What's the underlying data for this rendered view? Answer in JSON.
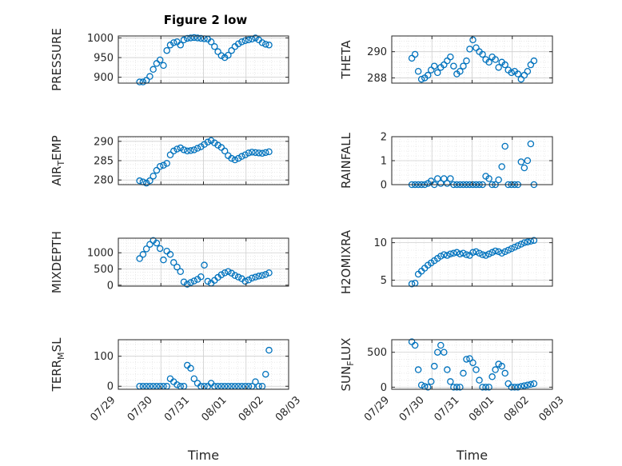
{
  "figure": {
    "title": "Figure 2 low"
  },
  "style": {
    "marker_color": "#0072BD",
    "axis_color": "#262626",
    "grid_color": "#dcdcdc",
    "background": "#ffffff"
  },
  "chart_data": [
    {
      "type": "scatter",
      "ylabel": "PRESSURE",
      "ylabel_sub": "",
      "ylabel_tail": "",
      "ylim": [
        885,
        1005
      ],
      "yticks": [
        900,
        950,
        1000
      ],
      "xlim": [
        0,
        4
      ],
      "show_x_ticks": false,
      "grid": true,
      "x": [
        0.5,
        0.58,
        0.66,
        0.74,
        0.82,
        0.9,
        0.98,
        1.06,
        1.14,
        1.22,
        1.3,
        1.38,
        1.46,
        1.54,
        1.62,
        1.7,
        1.78,
        1.86,
        1.94,
        2.02,
        2.1,
        2.18,
        2.26,
        2.34,
        2.42,
        2.5,
        2.58,
        2.66,
        2.74,
        2.82,
        2.9,
        2.98,
        3.06,
        3.14,
        3.22,
        3.3,
        3.38,
        3.46,
        3.54
      ],
      "y": [
        888,
        888,
        892,
        902,
        920,
        935,
        944,
        930,
        968,
        982,
        988,
        990,
        982,
        995,
        999,
        1000,
        1001,
        1000,
        999,
        998,
        997,
        990,
        978,
        965,
        955,
        950,
        956,
        968,
        978,
        985,
        990,
        993,
        995,
        997,
        1000,
        995,
        988,
        984,
        982
      ]
    },
    {
      "type": "scatter",
      "ylabel": "THETA",
      "ylabel_sub": "",
      "ylabel_tail": "",
      "ylim": [
        287.6,
        291.2
      ],
      "yticks": [
        288,
        290
      ],
      "xlim": [
        0,
        4
      ],
      "show_x_ticks": false,
      "grid": true,
      "x": [
        0.5,
        0.58,
        0.66,
        0.74,
        0.82,
        0.9,
        0.98,
        1.06,
        1.14,
        1.22,
        1.3,
        1.38,
        1.46,
        1.54,
        1.62,
        1.7,
        1.78,
        1.86,
        1.94,
        2.02,
        2.1,
        2.18,
        2.26,
        2.34,
        2.42,
        2.5,
        2.58,
        2.66,
        2.74,
        2.82,
        2.9,
        2.98,
        3.06,
        3.14,
        3.22,
        3.3,
        3.38,
        3.46,
        3.54
      ],
      "y": [
        289.5,
        289.8,
        288.5,
        287.9,
        288.0,
        288.2,
        288.6,
        288.9,
        288.4,
        288.8,
        289.0,
        289.3,
        289.6,
        288.9,
        288.3,
        288.5,
        288.9,
        289.3,
        290.2,
        290.9,
        290.3,
        290.0,
        289.8,
        289.4,
        289.2,
        289.6,
        289.4,
        288.8,
        289.2,
        289.0,
        288.6,
        288.4,
        288.5,
        288.3,
        287.9,
        288.2,
        288.5,
        289.0,
        289.3
      ]
    },
    {
      "type": "scatter",
      "ylabel": "AIR",
      "ylabel_sub": "T",
      "ylabel_tail": "EMP",
      "ylim": [
        278.8,
        291.2
      ],
      "yticks": [
        280,
        285,
        290
      ],
      "xlim": [
        0,
        4
      ],
      "show_x_ticks": false,
      "grid": true,
      "x": [
        0.5,
        0.58,
        0.66,
        0.74,
        0.82,
        0.9,
        0.98,
        1.06,
        1.14,
        1.22,
        1.3,
        1.38,
        1.46,
        1.54,
        1.62,
        1.7,
        1.78,
        1.86,
        1.94,
        2.02,
        2.1,
        2.18,
        2.26,
        2.34,
        2.42,
        2.5,
        2.58,
        2.66,
        2.74,
        2.82,
        2.9,
        2.98,
        3.06,
        3.14,
        3.22,
        3.3,
        3.38,
        3.46,
        3.54
      ],
      "y": [
        279.8,
        279.5,
        279.2,
        279.8,
        281.0,
        282.5,
        283.5,
        283.8,
        284.3,
        286.5,
        287.5,
        288.0,
        288.3,
        287.8,
        287.5,
        287.6,
        287.8,
        288.2,
        288.6,
        289.2,
        289.8,
        290.2,
        289.6,
        289.0,
        288.4,
        287.5,
        286.3,
        285.6,
        285.2,
        285.6,
        286.1,
        286.5,
        287.0,
        287.2,
        287.1,
        287.0,
        286.9,
        287.1,
        287.3
      ]
    },
    {
      "type": "scatter",
      "ylabel": "RAINFALL",
      "ylabel_sub": "",
      "ylabel_tail": "",
      "ylim": [
        0,
        2
      ],
      "yticks": [
        0,
        1,
        2
      ],
      "xlim": [
        0,
        4
      ],
      "show_x_ticks": false,
      "grid": true,
      "x": [
        0.5,
        0.58,
        0.66,
        0.74,
        0.82,
        0.9,
        0.98,
        1.06,
        1.14,
        1.22,
        1.3,
        1.38,
        1.46,
        1.54,
        1.62,
        1.7,
        1.78,
        1.86,
        1.94,
        2.02,
        2.1,
        2.18,
        2.26,
        2.34,
        2.42,
        2.5,
        2.58,
        2.66,
        2.74,
        2.82,
        2.9,
        2.98,
        3.06,
        3.14,
        3.22,
        3.3,
        3.38,
        3.46,
        3.54
      ],
      "y": [
        0,
        0,
        0,
        0,
        0,
        0.05,
        0.15,
        0,
        0.25,
        0.05,
        0.25,
        0.05,
        0.25,
        0,
        0,
        0,
        0,
        0,
        0,
        0,
        0,
        0,
        0,
        0.35,
        0.25,
        0,
        0,
        0.2,
        0.75,
        1.6,
        0,
        0,
        0,
        0,
        0.95,
        0.7,
        1.0,
        1.7,
        0
      ]
    },
    {
      "type": "scatter",
      "ylabel": "MIXDEPTH",
      "ylabel_sub": "",
      "ylabel_tail": "",
      "ylim": [
        -30,
        1450
      ],
      "yticks": [
        0,
        500,
        1000
      ],
      "xlim": [
        0,
        4
      ],
      "show_x_ticks": false,
      "grid": true,
      "x": [
        0.5,
        0.58,
        0.66,
        0.74,
        0.82,
        0.9,
        0.98,
        1.06,
        1.14,
        1.22,
        1.3,
        1.38,
        1.46,
        1.54,
        1.62,
        1.7,
        1.78,
        1.86,
        1.94,
        2.02,
        2.1,
        2.18,
        2.26,
        2.34,
        2.42,
        2.5,
        2.58,
        2.66,
        2.74,
        2.82,
        2.9,
        2.98,
        3.06,
        3.14,
        3.22,
        3.3,
        3.38,
        3.46,
        3.54
      ],
      "y": [
        820,
        950,
        1120,
        1260,
        1380,
        1300,
        1130,
        780,
        1050,
        950,
        700,
        560,
        420,
        100,
        30,
        80,
        130,
        180,
        260,
        620,
        120,
        60,
        150,
        240,
        320,
        380,
        420,
        370,
        300,
        250,
        200,
        120,
        160,
        220,
        250,
        280,
        300,
        330,
        380
      ]
    },
    {
      "type": "scatter",
      "ylabel": "H2OMIXRA",
      "ylabel_sub": "",
      "ylabel_tail": "",
      "ylim": [
        4.2,
        10.6
      ],
      "yticks": [
        5,
        10
      ],
      "xlim": [
        0,
        4
      ],
      "show_x_ticks": false,
      "grid": true,
      "x": [
        0.5,
        0.58,
        0.66,
        0.74,
        0.82,
        0.9,
        0.98,
        1.06,
        1.14,
        1.22,
        1.3,
        1.38,
        1.46,
        1.54,
        1.62,
        1.7,
        1.78,
        1.86,
        1.94,
        2.02,
        2.1,
        2.18,
        2.26,
        2.34,
        2.42,
        2.5,
        2.58,
        2.66,
        2.74,
        2.82,
        2.9,
        2.98,
        3.06,
        3.14,
        3.22,
        3.3,
        3.38,
        3.46,
        3.54
      ],
      "y": [
        4.5,
        4.6,
        5.8,
        6.2,
        6.6,
        7.0,
        7.3,
        7.6,
        7.9,
        8.2,
        8.4,
        8.3,
        8.5,
        8.6,
        8.7,
        8.5,
        8.6,
        8.4,
        8.3,
        8.7,
        8.8,
        8.6,
        8.4,
        8.3,
        8.5,
        8.7,
        8.9,
        8.8,
        8.6,
        8.8,
        9.0,
        9.2,
        9.4,
        9.6,
        9.8,
        10.0,
        10.1,
        10.2,
        10.3
      ]
    },
    {
      "type": "scatter",
      "ylabel": "TERR",
      "ylabel_sub": "M",
      "ylabel_tail": "SL",
      "ylim": [
        -10,
        155
      ],
      "yticks": [
        0,
        100
      ],
      "xlim": [
        0,
        4
      ],
      "show_x_ticks": true,
      "grid": true,
      "xtick_labels": [
        "07/29",
        "07/30",
        "07/31",
        "08/01",
        "08/02",
        "08/03"
      ],
      "xlabel": "Time",
      "x": [
        0.5,
        0.58,
        0.66,
        0.74,
        0.82,
        0.9,
        0.98,
        1.06,
        1.14,
        1.22,
        1.3,
        1.38,
        1.46,
        1.54,
        1.62,
        1.7,
        1.78,
        1.86,
        1.94,
        2.02,
        2.1,
        2.18,
        2.26,
        2.34,
        2.42,
        2.5,
        2.58,
        2.66,
        2.74,
        2.82,
        2.9,
        2.98,
        3.06,
        3.14,
        3.22,
        3.3,
        3.38,
        3.46,
        3.54
      ],
      "y": [
        0,
        0,
        0,
        0,
        0,
        0,
        0,
        0,
        0,
        25,
        15,
        5,
        0,
        0,
        70,
        60,
        25,
        10,
        0,
        0,
        0,
        10,
        0,
        0,
        0,
        0,
        0,
        0,
        0,
        0,
        0,
        0,
        0,
        0,
        15,
        0,
        0,
        40,
        120
      ]
    },
    {
      "type": "scatter",
      "ylabel": "SUN",
      "ylabel_sub": "F",
      "ylabel_tail": "LUX",
      "ylim": [
        -30,
        680
      ],
      "yticks": [
        0,
        500
      ],
      "xlim": [
        0,
        4
      ],
      "show_x_ticks": true,
      "grid": true,
      "xtick_labels": [
        "07/29",
        "07/30",
        "07/31",
        "08/01",
        "08/02",
        "08/03"
      ],
      "xlabel": "Time",
      "x": [
        0.5,
        0.58,
        0.66,
        0.74,
        0.82,
        0.9,
        0.98,
        1.06,
        1.14,
        1.22,
        1.3,
        1.38,
        1.46,
        1.54,
        1.62,
        1.7,
        1.78,
        1.86,
        1.94,
        2.02,
        2.1,
        2.18,
        2.26,
        2.34,
        2.42,
        2.5,
        2.58,
        2.66,
        2.74,
        2.82,
        2.9,
        2.98,
        3.06,
        3.14,
        3.22,
        3.3,
        3.38,
        3.46,
        3.54
      ],
      "y": [
        650,
        600,
        250,
        30,
        10,
        0,
        80,
        300,
        500,
        600,
        500,
        250,
        80,
        0,
        0,
        0,
        200,
        400,
        410,
        350,
        250,
        100,
        0,
        0,
        0,
        150,
        250,
        330,
        300,
        200,
        50,
        0,
        0,
        0,
        10,
        20,
        30,
        40,
        50
      ]
    }
  ]
}
